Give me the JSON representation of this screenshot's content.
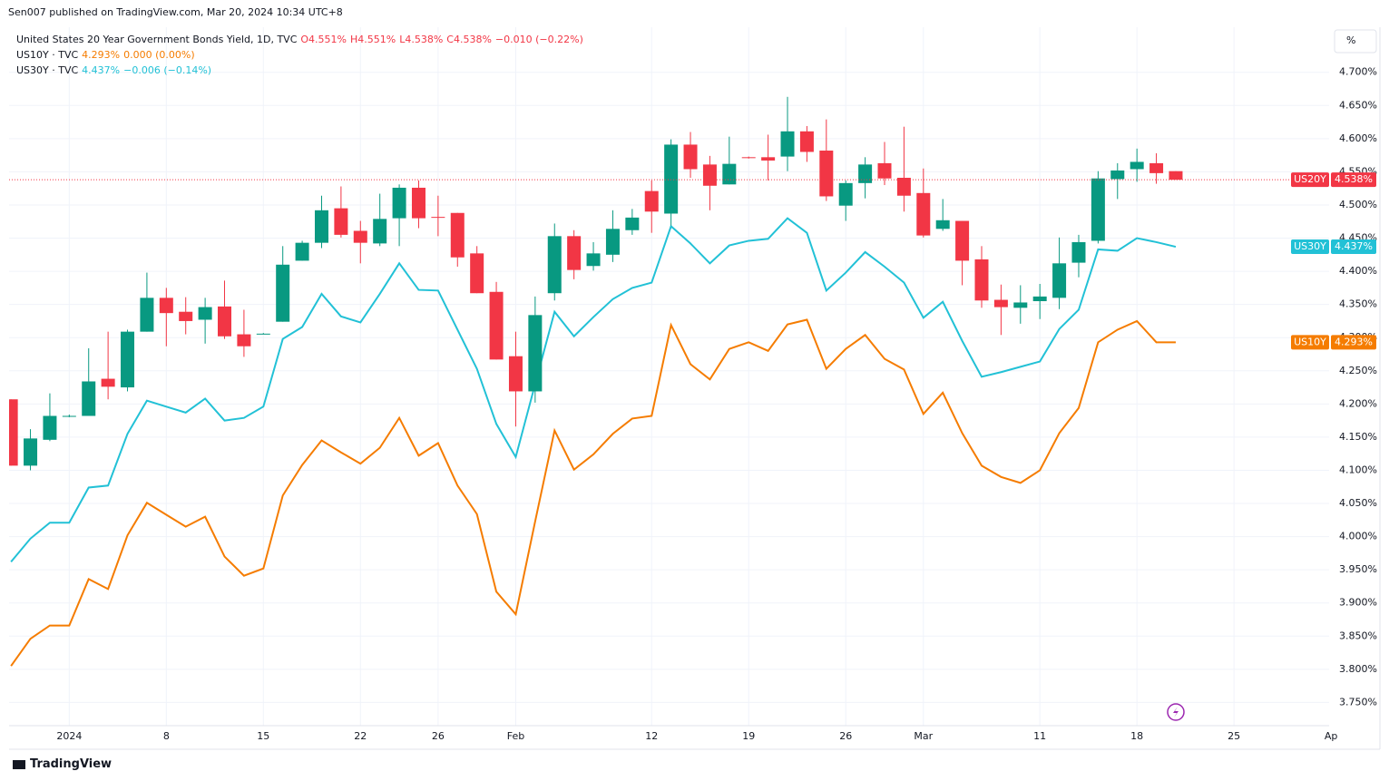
{
  "header": "Sen007 published on TradingView.com, Mar 20, 2024 10:34 UTC+8",
  "footer": "TradingView",
  "chart_data": {
    "type": "candlestick",
    "legend": [
      {
        "name": "United States 20 Year Government Bonds Yield, 1D, TVC",
        "parts": [
          "O4.551%",
          "H4.551%",
          "L4.538%",
          "C4.538%",
          "−0.010 (−0.22%)"
        ],
        "color": "#f23645"
      },
      {
        "name": "US10Y · TVC",
        "parts": [
          "4.293%",
          "0.000 (0.00%)"
        ],
        "color": "#f57c00"
      },
      {
        "name": "US30Y · TVC",
        "parts": [
          "4.437%",
          "−0.006 (−0.14%)"
        ],
        "color": "#22c1d6"
      }
    ],
    "unit": "%",
    "up_color": "#089981",
    "down_color": "#f23645",
    "candles": {
      "open": [
        4.207,
        4.107,
        4.146,
        4.182,
        4.182,
        4.238,
        4.225,
        4.309,
        4.36,
        4.339,
        4.327,
        4.347,
        4.305,
        4.306,
        4.324,
        4.416,
        4.443,
        4.495,
        4.461,
        4.442,
        4.48,
        4.526,
        4.482,
        4.488,
        4.427,
        4.369,
        4.272,
        4.219,
        4.367,
        4.453,
        4.408,
        4.425,
        4.462,
        4.521,
        4.487,
        4.591,
        4.561,
        4.531,
        4.572,
        4.572,
        4.573,
        4.611,
        4.582,
        4.499,
        4.533,
        4.563,
        4.541,
        4.518,
        4.464,
        4.476,
        4.418,
        4.357,
        4.345,
        4.355,
        4.36,
        4.413,
        4.446,
        4.539,
        4.554,
        4.563,
        4.551
      ],
      "high": [
        4.207,
        4.162,
        4.216,
        4.184,
        4.284,
        4.309,
        4.312,
        4.398,
        4.375,
        4.361,
        4.36,
        4.386,
        4.342,
        4.307,
        4.438,
        4.446,
        4.514,
        4.528,
        4.476,
        4.517,
        4.531,
        4.537,
        4.514,
        4.488,
        4.438,
        4.384,
        4.309,
        4.362,
        4.472,
        4.462,
        4.444,
        4.492,
        4.494,
        4.537,
        4.599,
        4.61,
        4.574,
        4.603,
        4.573,
        4.606,
        4.663,
        4.619,
        4.629,
        4.537,
        4.572,
        4.595,
        4.618,
        4.555,
        4.509,
        4.476,
        4.438,
        4.38,
        4.379,
        4.381,
        4.451,
        4.455,
        4.551,
        4.563,
        4.585,
        4.578,
        4.551
      ],
      "low": [
        4.107,
        4.1,
        4.144,
        4.18,
        4.182,
        4.207,
        4.219,
        4.309,
        4.287,
        4.305,
        4.291,
        4.298,
        4.271,
        4.305,
        4.324,
        4.416,
        4.435,
        4.451,
        4.412,
        4.438,
        4.438,
        4.465,
        4.453,
        4.407,
        4.367,
        4.267,
        4.166,
        4.202,
        4.356,
        4.388,
        4.401,
        4.414,
        4.455,
        4.458,
        4.469,
        4.541,
        4.492,
        4.531,
        4.57,
        4.537,
        4.551,
        4.565,
        4.506,
        4.476,
        4.51,
        4.53,
        4.49,
        4.451,
        4.461,
        4.379,
        4.345,
        4.304,
        4.321,
        4.328,
        4.343,
        4.391,
        4.442,
        4.509,
        4.535,
        4.532,
        4.538
      ],
      "close": [
        4.107,
        4.148,
        4.182,
        4.182,
        4.234,
        4.226,
        4.309,
        4.36,
        4.337,
        4.325,
        4.346,
        4.302,
        4.287,
        4.306,
        4.41,
        4.443,
        4.492,
        4.455,
        4.443,
        4.479,
        4.526,
        4.48,
        4.481,
        4.421,
        4.367,
        4.267,
        4.219,
        4.334,
        4.453,
        4.402,
        4.427,
        4.464,
        4.481,
        4.49,
        4.591,
        4.554,
        4.529,
        4.562,
        4.571,
        4.567,
        4.611,
        4.58,
        4.513,
        4.533,
        4.561,
        4.54,
        4.514,
        4.454,
        4.477,
        4.416,
        4.356,
        4.346,
        4.353,
        4.362,
        4.412,
        4.444,
        4.54,
        4.552,
        4.565,
        4.548,
        4.538
      ]
    },
    "series": [
      {
        "name": "US30Y",
        "color": "#22c1d6",
        "values": [
          3.962,
          3.997,
          4.021,
          4.021,
          4.074,
          4.077,
          4.155,
          4.205,
          4.196,
          4.187,
          4.208,
          4.175,
          4.179,
          4.196,
          4.298,
          4.316,
          4.366,
          4.332,
          4.323,
          4.366,
          4.412,
          4.372,
          4.371,
          4.312,
          4.253,
          4.17,
          4.12,
          4.23,
          4.339,
          4.302,
          4.331,
          4.358,
          4.375,
          4.383,
          4.468,
          4.442,
          4.412,
          4.439,
          4.446,
          4.449,
          4.48,
          4.458,
          4.371,
          4.398,
          4.429,
          4.407,
          4.383,
          4.33,
          4.354,
          4.295,
          4.241,
          4.248,
          4.256,
          4.264,
          4.313,
          4.342,
          4.433,
          4.431,
          4.45,
          4.444,
          4.437
        ]
      },
      {
        "name": "US10Y",
        "color": "#f57c00",
        "values": [
          3.805,
          3.846,
          3.866,
          3.866,
          3.936,
          3.921,
          4.002,
          4.051,
          4.033,
          4.015,
          4.03,
          3.97,
          3.941,
          3.952,
          4.062,
          4.108,
          4.145,
          4.127,
          4.11,
          4.134,
          4.179,
          4.122,
          4.141,
          4.077,
          4.034,
          3.917,
          3.883,
          4.023,
          4.16,
          4.101,
          4.124,
          4.155,
          4.178,
          4.182,
          4.319,
          4.26,
          4.237,
          4.283,
          4.293,
          4.28,
          4.32,
          4.327,
          4.253,
          4.283,
          4.304,
          4.268,
          4.252,
          4.185,
          4.217,
          4.156,
          4.107,
          4.09,
          4.081,
          4.1,
          4.156,
          4.194,
          4.293,
          4.312,
          4.325,
          4.293,
          4.293
        ]
      }
    ],
    "price_tags": [
      {
        "name": "US20Y",
        "value": 4.538,
        "label": "4.538%",
        "color": "#f23645"
      },
      {
        "name": "US30Y",
        "value": 4.437,
        "label": "4.437%",
        "color": "#22c1d6"
      },
      {
        "name": "US10Y",
        "value": 4.293,
        "label": "4.293%",
        "color": "#f57c00"
      }
    ],
    "xlim": [
      -0.1,
      67.9
    ],
    "xticks": [
      {
        "value": 3,
        "label": "2024"
      },
      {
        "value": 8,
        "label": "8"
      },
      {
        "value": 13,
        "label": "15"
      },
      {
        "value": 18,
        "label": "22"
      },
      {
        "value": 22,
        "label": "26"
      },
      {
        "value": 26,
        "label": "Feb"
      },
      {
        "value": 33,
        "label": "12"
      },
      {
        "value": 38,
        "label": "19"
      },
      {
        "value": 43,
        "label": "26"
      },
      {
        "value": 47,
        "label": "Mar"
      },
      {
        "value": 53,
        "label": "11"
      },
      {
        "value": 58,
        "label": "18"
      },
      {
        "value": 63,
        "label": "25"
      },
      {
        "value": 68,
        "label": "Ap"
      }
    ],
    "ylim": [
      3.715,
      4.768
    ],
    "yticks": [
      {
        "value": 4.7,
        "label": "4.700%"
      },
      {
        "value": 4.65,
        "label": "4.650%"
      },
      {
        "value": 4.6,
        "label": "4.600%"
      },
      {
        "value": 4.55,
        "label": "4.550%"
      },
      {
        "value": 4.5,
        "label": "4.500%"
      },
      {
        "value": 4.45,
        "label": "4.450%"
      },
      {
        "value": 4.4,
        "label": "4.400%"
      },
      {
        "value": 4.35,
        "label": "4.350%"
      },
      {
        "value": 4.3,
        "label": "4.300%"
      },
      {
        "value": 4.25,
        "label": "4.250%"
      },
      {
        "value": 4.2,
        "label": "4.200%"
      },
      {
        "value": 4.15,
        "label": "4.150%"
      },
      {
        "value": 4.1,
        "label": "4.100%"
      },
      {
        "value": 4.05,
        "label": "4.050%"
      },
      {
        "value": 4.0,
        "label": "4.000%"
      },
      {
        "value": 3.95,
        "label": "3.950%"
      },
      {
        "value": 3.9,
        "label": "3.900%"
      },
      {
        "value": 3.85,
        "label": "3.850%"
      },
      {
        "value": 3.8,
        "label": "3.800%"
      },
      {
        "value": 3.75,
        "label": "3.750%"
      }
    ],
    "grid": true
  }
}
